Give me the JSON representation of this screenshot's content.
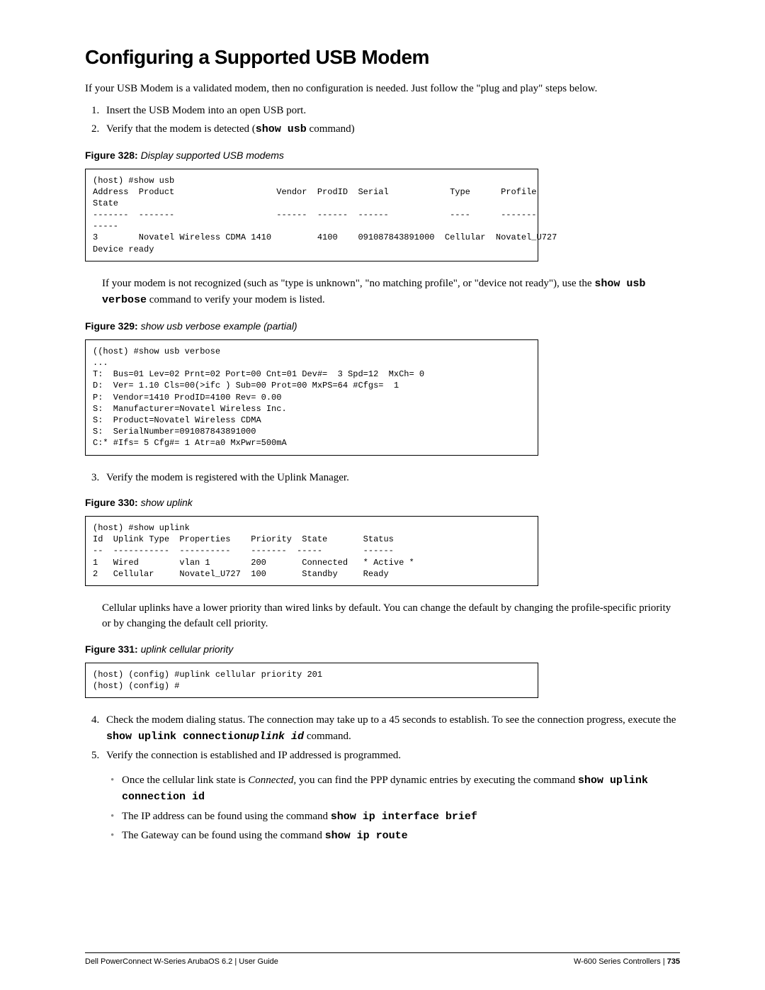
{
  "title": "Configuring a Supported USB Modem",
  "intro": "If your USB Modem is a validated modem, then no configuration is needed. Just follow the \"plug and play\" steps below.",
  "steps12": {
    "s1": "Insert the USB Modem into an open USB port.",
    "s2a": "Verify that the modem is detected (",
    "s2cmd": "show usb",
    "s2b": " command)"
  },
  "fig328": {
    "label": "Figure 328:",
    "caption": "Display supported USB modems"
  },
  "code328": "(host) #show usb\nAddress  Product                    Vendor  ProdID  Serial            Type      Profile\nState\n-------  -------                    ------  ------  ------            ----      -------\n-----\n3        Novatel Wireless CDMA 1410         4100    091087843891000  Cellular  Novatel_U727\nDevice ready",
  "para_not_recognized": {
    "a": "If your modem is not recognized (such as \"type is unknown\", \"no matching profile\", or \"device not ready\"), use the ",
    "cmd": "show usb verbose",
    "b": " command to verify your modem is listed."
  },
  "fig329": {
    "label": "Figure 329:",
    "caption": "show usb verbose example (partial)"
  },
  "code329": "((host) #show usb verbose\n...\nT:  Bus=01 Lev=02 Prnt=02 Port=00 Cnt=01 Dev#=  3 Spd=12  MxCh= 0\nD:  Ver= 1.10 Cls=00(>ifc ) Sub=00 Prot=00 MxPS=64 #Cfgs=  1\nP:  Vendor=1410 ProdID=4100 Rev= 0.00\nS:  Manufacturer=Novatel Wireless Inc.\nS:  Product=Novatel Wireless CDMA\nS:  SerialNumber=091087843891000\nC:* #Ifs= 5 Cfg#= 1 Atr=a0 MxPwr=500mA",
  "step3": "Verify the modem is registered with the Uplink Manager.",
  "fig330": {
    "label": "Figure 330:",
    "caption": "show uplink"
  },
  "code330": "(host) #show uplink\nId  Uplink Type  Properties    Priority  State       Status\n--  -----------  ----------    -------  -----        ------\n1   Wired        vlan 1        200       Connected   * Active *\n2   Cellular     Novatel_U727  100       Standby     Ready",
  "para_priority": "Cellular uplinks have a lower priority than wired links by default. You can change the default by changing the profile-specific priority or by changing the default cell priority.",
  "fig331": {
    "label": "Figure 331:",
    "caption": "uplink cellular priority"
  },
  "code331": "(host) (config) #uplink cellular priority 201\n(host) (config) #",
  "steps45": {
    "s4a": "Check the modem dialing status. The connection may take up to a 45 seconds to establish. To see the connection progress, execute the ",
    "s4cmd1": "show uplink connection",
    "s4cmd2": "uplink id",
    "s4b": " command.",
    "s5": "Verify the connection is established and IP addressed is programmed."
  },
  "bullets": {
    "b1a": "Once the cellular link state is ",
    "b1ital": "Connected,",
    "b1b": " you can find the PPP dynamic entries by executing the command ",
    "b1cmd": "show uplink connection id",
    "b2a": "The IP address can be found using the command ",
    "b2cmd": "show ip interface brief",
    "b3a": "The Gateway can be found using the command ",
    "b3cmd": "show ip route"
  },
  "footer": {
    "left": "Dell PowerConnect W-Series ArubaOS 6.2 | User Guide",
    "right_a": "W-600 Series Controllers",
    "right_b": " | ",
    "right_c": "735"
  }
}
